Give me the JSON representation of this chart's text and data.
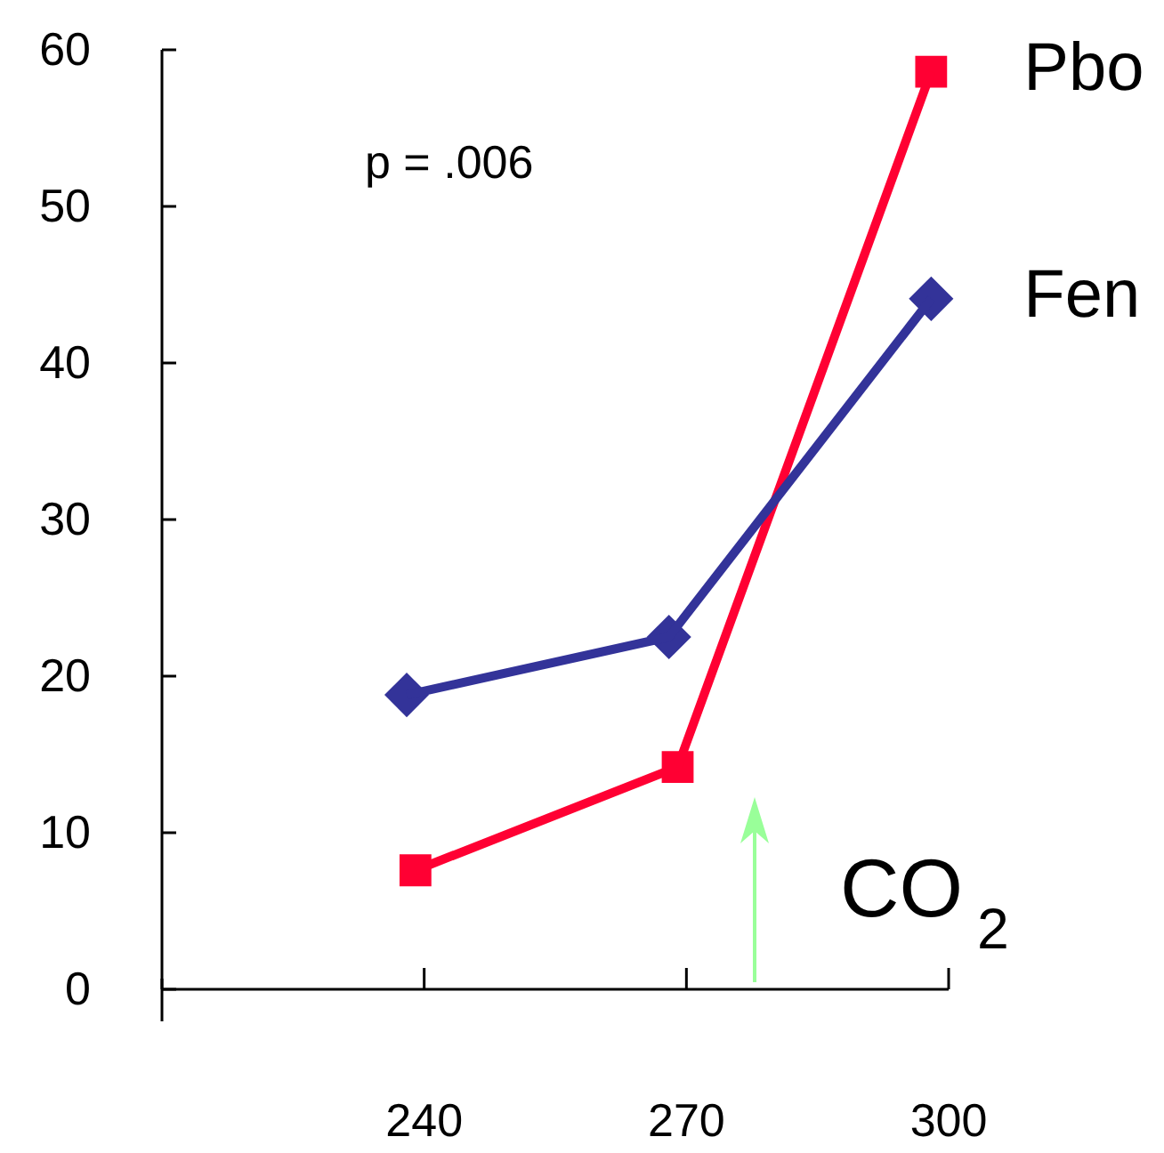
{
  "chart_data": {
    "type": "line",
    "series": [
      {
        "name": "Pbo",
        "color": "#ff0033",
        "marker": "square",
        "x": [
          239,
          269,
          298
        ],
        "values": [
          7.6,
          14.2,
          58.6
        ]
      },
      {
        "name": "Fen",
        "color": "#333399",
        "marker": "diamond",
        "x": [
          238,
          268,
          298
        ],
        "values": [
          18.8,
          22.5,
          44.1
        ]
      }
    ],
    "xlim": [
      210,
      300
    ],
    "xticks": [
      240,
      270,
      300
    ],
    "ylim": [
      0,
      60
    ],
    "yticks": [
      0,
      10,
      20,
      30,
      40,
      50,
      60
    ],
    "grid": false,
    "annotations": [
      "p = .006",
      "CO$_{2}$"
    ]
  }
}
